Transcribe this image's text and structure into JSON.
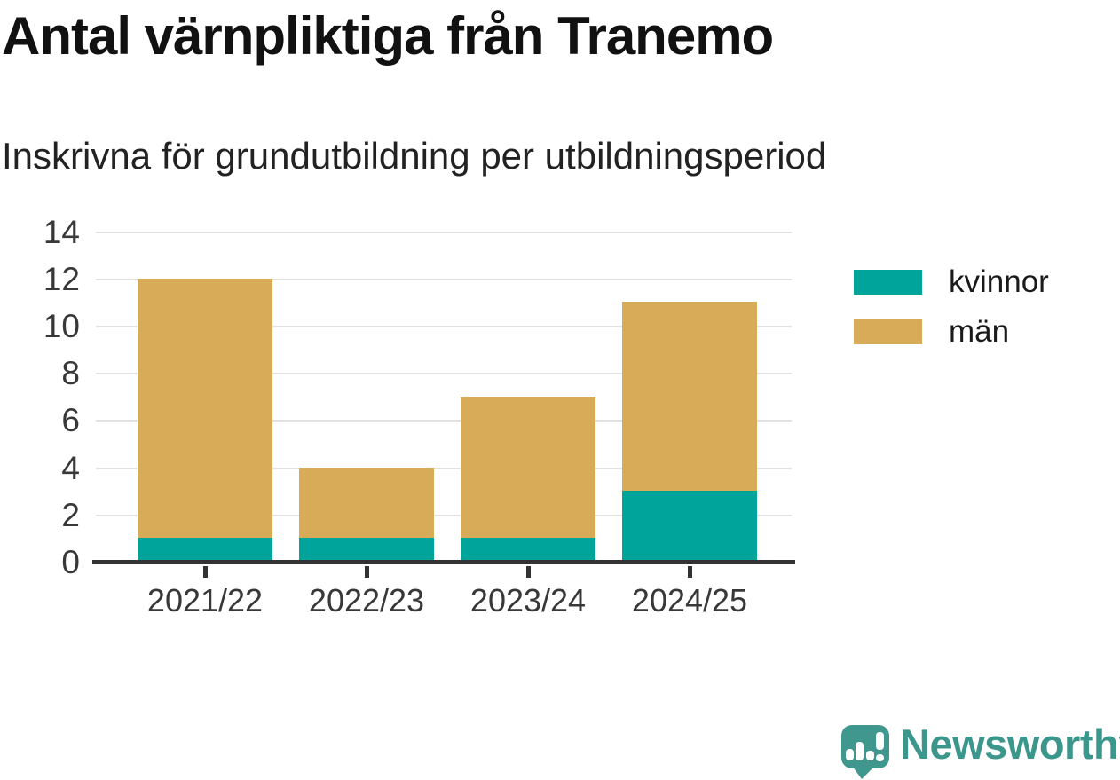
{
  "chart_data": {
    "type": "bar",
    "stacked": true,
    "title": "Antal värnpliktiga från Tranemo",
    "subtitle": "Inskrivna för grundutbildning per utbildningsperiod",
    "categories": [
      "2021/22",
      "2022/23",
      "2023/24",
      "2024/25"
    ],
    "series": [
      {
        "name": "kvinnor",
        "color": "#00a49a",
        "values": [
          1,
          1,
          1,
          3
        ]
      },
      {
        "name": "män",
        "color": "#d8ab58",
        "values": [
          11,
          3,
          6,
          8
        ]
      }
    ],
    "totals": [
      12,
      4,
      7,
      11
    ],
    "ylim": [
      0,
      14
    ],
    "yticks": [
      0,
      2,
      4,
      6,
      8,
      10,
      12,
      14
    ],
    "xlabel": "",
    "ylabel": "",
    "grid": true,
    "legend_position": "right"
  },
  "colors": {
    "kvinnor": "#00a49a",
    "man": "#d8ab58",
    "axis": "#333333",
    "gridline": "#e1e1e1",
    "tick_text": "#383838",
    "title_text": "#111111",
    "logo": "#3b968c"
  },
  "branding": {
    "logo_text": "Newsworthy",
    "logo_icon": "newsworthy-speech-bubble-bar-chart-icon"
  }
}
